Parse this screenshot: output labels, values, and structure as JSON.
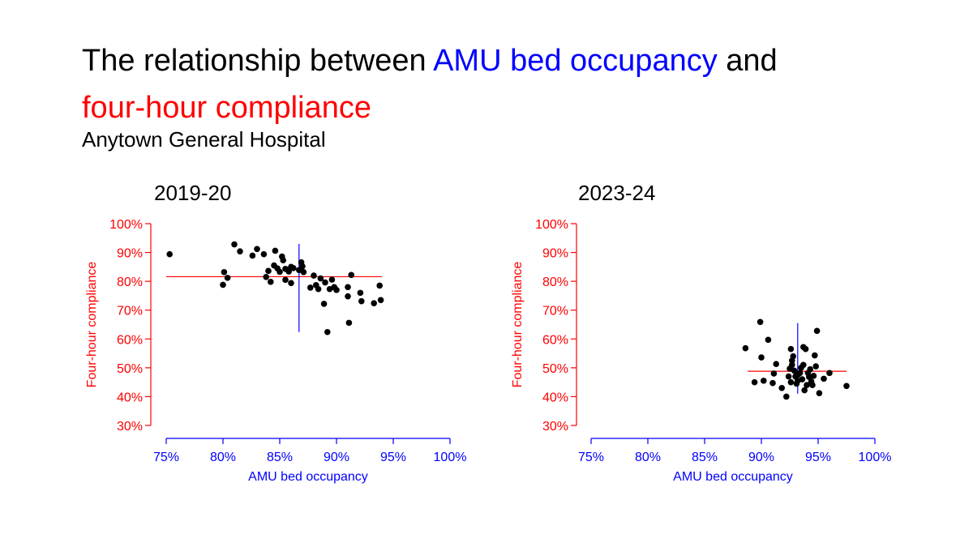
{
  "title": {
    "part1": "The relationship between ",
    "part2": "AMU bed occupancy",
    "part3": " and",
    "part4": "four-hour compliance"
  },
  "subtitle": "Anytown General Hospital",
  "colors": {
    "x_accent": "#0000ff",
    "y_accent": "#ff0000",
    "points": "#000000"
  },
  "chart_data": [
    {
      "type": "scatter",
      "title": "2019-20",
      "xlabel": "AMU bed occupancy",
      "ylabel": "Four-hour compliance",
      "xlim": [
        0.75,
        1.0
      ],
      "ylim": [
        0.3,
        1.0
      ],
      "xticks": [
        0.75,
        0.8,
        0.85,
        0.9,
        0.95,
        1.0
      ],
      "xtick_labels": [
        "75%",
        "80%",
        "85%",
        "90%",
        "95%",
        "100%"
      ],
      "yticks": [
        0.3,
        0.4,
        0.5,
        0.6,
        0.7,
        0.8,
        0.9,
        1.0
      ],
      "ytick_labels": [
        "30%",
        "40%",
        "50%",
        "60%",
        "70%",
        "80%",
        "90%",
        "100%"
      ],
      "grid": false,
      "mean_x": 0.867,
      "mean_y": 0.816,
      "mean_x_line_y_range": [
        0.624,
        0.93
      ],
      "mean_y_line_x_range": [
        0.75,
        0.94
      ],
      "points": [
        [
          0.753,
          0.894
        ],
        [
          0.8,
          0.788
        ],
        [
          0.801,
          0.832
        ],
        [
          0.804,
          0.812
        ],
        [
          0.81,
          0.928
        ],
        [
          0.815,
          0.904
        ],
        [
          0.826,
          0.889
        ],
        [
          0.83,
          0.912
        ],
        [
          0.836,
          0.894
        ],
        [
          0.838,
          0.815
        ],
        [
          0.84,
          0.836
        ],
        [
          0.842,
          0.798
        ],
        [
          0.845,
          0.855
        ],
        [
          0.846,
          0.906
        ],
        [
          0.848,
          0.845
        ],
        [
          0.85,
          0.833
        ],
        [
          0.852,
          0.886
        ],
        [
          0.853,
          0.873
        ],
        [
          0.855,
          0.805
        ],
        [
          0.855,
          0.843
        ],
        [
          0.858,
          0.834
        ],
        [
          0.86,
          0.85
        ],
        [
          0.86,
          0.794
        ],
        [
          0.862,
          0.846
        ],
        [
          0.867,
          0.839
        ],
        [
          0.869,
          0.866
        ],
        [
          0.87,
          0.852
        ],
        [
          0.871,
          0.832
        ],
        [
          0.877,
          0.778
        ],
        [
          0.88,
          0.82
        ],
        [
          0.882,
          0.787
        ],
        [
          0.884,
          0.773
        ],
        [
          0.886,
          0.81
        ],
        [
          0.889,
          0.722
        ],
        [
          0.89,
          0.796
        ],
        [
          0.892,
          0.624
        ],
        [
          0.894,
          0.773
        ],
        [
          0.896,
          0.806
        ],
        [
          0.898,
          0.78
        ],
        [
          0.9,
          0.77
        ],
        [
          0.91,
          0.78
        ],
        [
          0.91,
          0.748
        ],
        [
          0.911,
          0.656
        ],
        [
          0.913,
          0.822
        ],
        [
          0.921,
          0.76
        ],
        [
          0.922,
          0.731
        ],
        [
          0.933,
          0.724
        ],
        [
          0.938,
          0.785
        ],
        [
          0.939,
          0.735
        ]
      ]
    },
    {
      "type": "scatter",
      "title": "2023-24",
      "xlabel": "AMU bed occupancy",
      "ylabel": "Four-hour compliance",
      "xlim": [
        0.75,
        1.0
      ],
      "ylim": [
        0.3,
        1.0
      ],
      "xticks": [
        0.75,
        0.8,
        0.85,
        0.9,
        0.95,
        1.0
      ],
      "xtick_labels": [
        "75%",
        "80%",
        "85%",
        "90%",
        "95%",
        "100%"
      ],
      "yticks": [
        0.3,
        0.4,
        0.5,
        0.6,
        0.7,
        0.8,
        0.9,
        1.0
      ],
      "ytick_labels": [
        "30%",
        "40%",
        "50%",
        "60%",
        "70%",
        "80%",
        "90%",
        "100%"
      ],
      "grid": false,
      "mean_x": 0.932,
      "mean_y": 0.488,
      "mean_x_line_y_range": [
        0.41,
        0.655
      ],
      "mean_y_line_x_range": [
        0.888,
        0.975
      ],
      "points": [
        [
          0.886,
          0.568
        ],
        [
          0.894,
          0.45
        ],
        [
          0.899,
          0.659
        ],
        [
          0.9,
          0.536
        ],
        [
          0.902,
          0.455
        ],
        [
          0.906,
          0.597
        ],
        [
          0.91,
          0.447
        ],
        [
          0.911,
          0.48
        ],
        [
          0.913,
          0.513
        ],
        [
          0.918,
          0.43
        ],
        [
          0.922,
          0.4
        ],
        [
          0.924,
          0.47
        ],
        [
          0.925,
          0.497
        ],
        [
          0.926,
          0.565
        ],
        [
          0.926,
          0.45
        ],
        [
          0.927,
          0.525
        ],
        [
          0.927,
          0.51
        ],
        [
          0.928,
          0.54
        ],
        [
          0.929,
          0.49
        ],
        [
          0.93,
          0.47
        ],
        [
          0.931,
          0.445
        ],
        [
          0.932,
          0.475
        ],
        [
          0.932,
          0.455
        ],
        [
          0.934,
          0.482
        ],
        [
          0.935,
          0.5
        ],
        [
          0.936,
          0.46
        ],
        [
          0.937,
          0.51
        ],
        [
          0.937,
          0.572
        ],
        [
          0.938,
          0.422
        ],
        [
          0.939,
          0.565
        ],
        [
          0.94,
          0.44
        ],
        [
          0.941,
          0.482
        ],
        [
          0.942,
          0.468
        ],
        [
          0.943,
          0.495
        ],
        [
          0.944,
          0.452
        ],
        [
          0.945,
          0.44
        ],
        [
          0.946,
          0.472
        ],
        [
          0.947,
          0.543
        ],
        [
          0.948,
          0.505
        ],
        [
          0.949,
          0.628
        ],
        [
          0.951,
          0.412
        ],
        [
          0.955,
          0.462
        ],
        [
          0.96,
          0.482
        ],
        [
          0.975,
          0.437
        ]
      ]
    }
  ]
}
